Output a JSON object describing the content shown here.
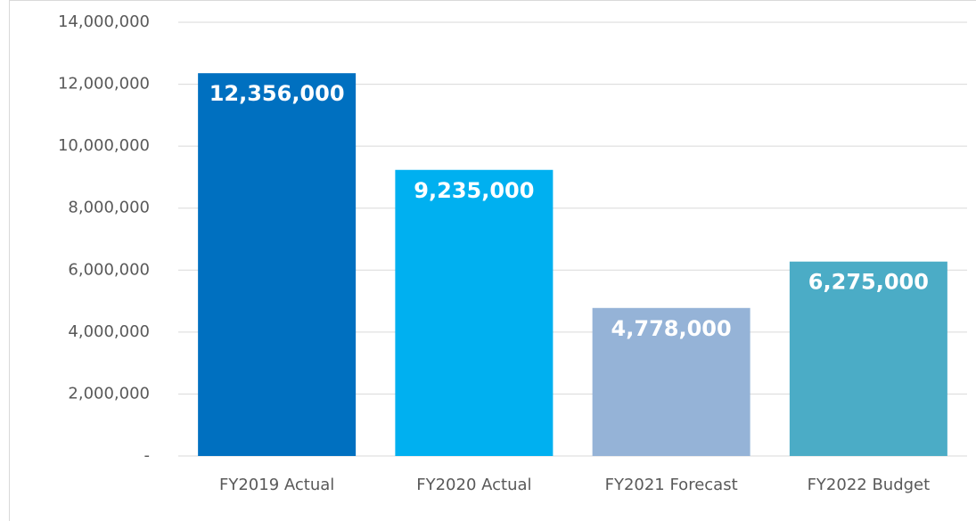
{
  "chart_data": {
    "type": "bar",
    "categories": [
      "FY2019 Actual",
      "FY2020 Actual",
      "FY2021 Forecast",
      "FY2022 Budget"
    ],
    "values": [
      12356000,
      9235000,
      4778000,
      6275000
    ],
    "value_labels": [
      "12,356,000",
      "9,235,000",
      "4,778,000",
      "6,275,000"
    ],
    "colors": [
      "#0070c0",
      "#00b0f0",
      "#95b3d7",
      "#4bacc6"
    ],
    "ylim": [
      0,
      14000000
    ],
    "yticks": [
      {
        "value": 0,
        "label": "-"
      },
      {
        "value": 2000000,
        "label": "2,000,000"
      },
      {
        "value": 4000000,
        "label": "4,000,000"
      },
      {
        "value": 6000000,
        "label": "6,000,000"
      },
      {
        "value": 8000000,
        "label": "8,000,000"
      },
      {
        "value": 10000000,
        "label": "10,000,000"
      },
      {
        "value": 12000000,
        "label": "12,000,000"
      },
      {
        "value": 14000000,
        "label": "14,000,000"
      }
    ],
    "grid": true
  }
}
